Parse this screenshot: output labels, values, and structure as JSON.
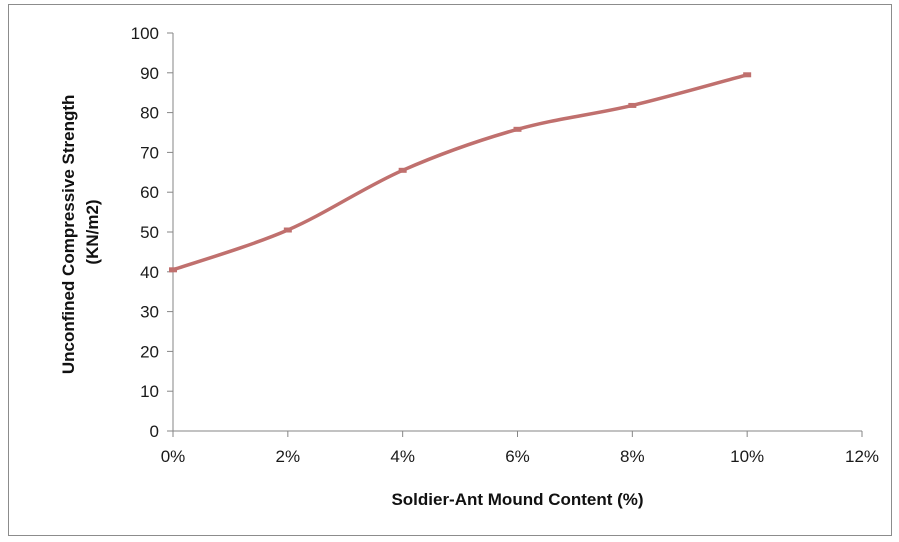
{
  "chart_data": {
    "type": "line",
    "title": "",
    "xlabel": "Soldier-Ant Mound Content (%)",
    "ylabel_lines": [
      "Unconfined Compressive Strength",
      "(KN/m2)"
    ],
    "x_ticks": [
      "0%",
      "2%",
      "4%",
      "6%",
      "8%",
      "10%",
      "12%"
    ],
    "x_tick_values": [
      0,
      2,
      4,
      6,
      8,
      10,
      12
    ],
    "y_ticks": [
      "0",
      "10",
      "20",
      "30",
      "40",
      "50",
      "60",
      "70",
      "80",
      "90",
      "100"
    ],
    "y_tick_values": [
      0,
      10,
      20,
      30,
      40,
      50,
      60,
      70,
      80,
      90,
      100
    ],
    "xlim": [
      0,
      12
    ],
    "ylim": [
      0,
      100
    ],
    "grid": false,
    "legend": "none",
    "smooth": true,
    "series": [
      {
        "x": [
          0,
          2,
          4,
          6,
          8,
          10
        ],
        "values": [
          40.5,
          50.5,
          65.5,
          75.8,
          81.8,
          89.5
        ],
        "color": "#c0706e",
        "marker_color": "#c0706e"
      }
    ]
  }
}
